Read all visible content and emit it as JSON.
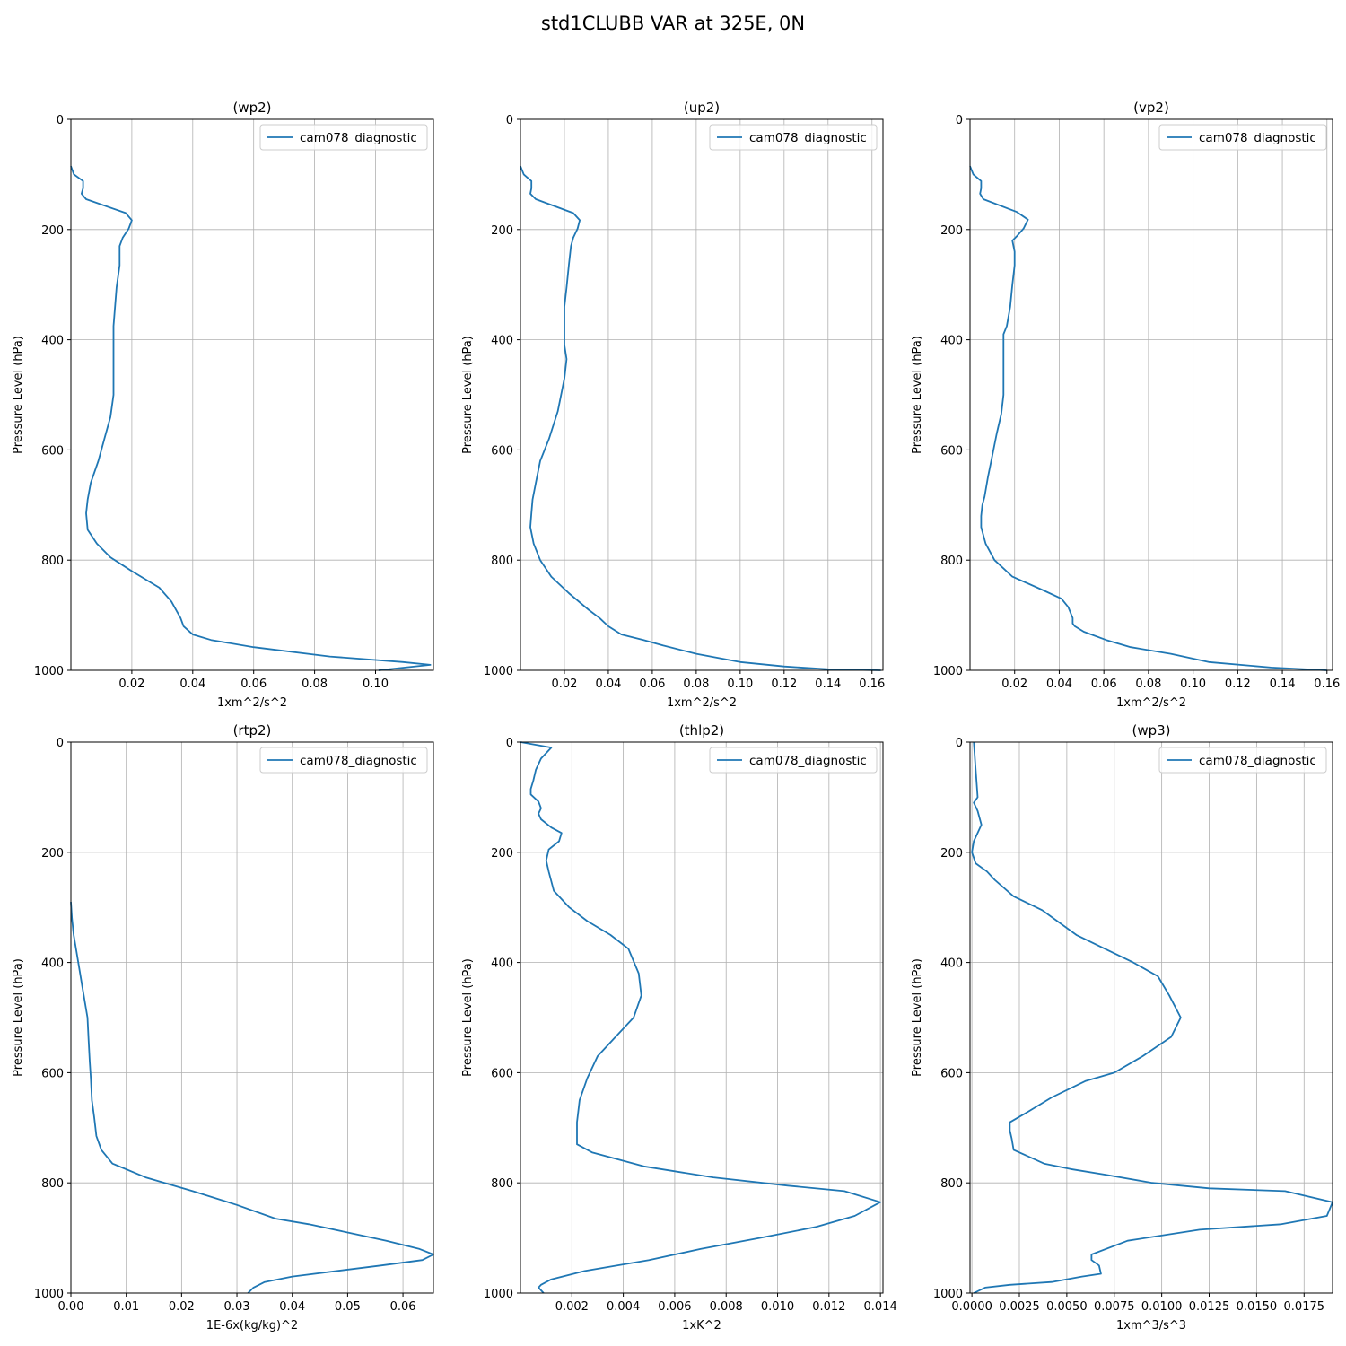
{
  "figure": {
    "title": "std1CLUBB VAR at 325E, 0N",
    "line_color": "#1f77b4",
    "grid_color": "#b0b0b0"
  },
  "chart_data": [
    {
      "type": "line",
      "title": "(wp2)",
      "xlabel": "1xm^2/s^2",
      "ylabel": "Pressure Level (hPa)",
      "xlim": [
        0.0,
        0.119
      ],
      "ylim": [
        1000,
        0
      ],
      "y_inverted": true,
      "xticks": [
        0.02,
        0.04,
        0.06,
        0.08,
        0.1
      ],
      "xtick_labels": [
        "0.02",
        "0.04",
        "0.06",
        "0.08",
        "0.10"
      ],
      "yticks": [
        0,
        200,
        400,
        600,
        800,
        1000
      ],
      "ytick_labels": [
        "0",
        "200",
        "400",
        "600",
        "800",
        "1000"
      ],
      "grid": true,
      "legend": "upper right",
      "series": [
        {
          "name": "cam078_diagnostic",
          "x": [
            0.0,
            0.001,
            0.004,
            0.004,
            0.0035,
            0.005,
            0.018,
            0.02,
            0.019,
            0.017,
            0.016,
            0.016,
            0.015,
            0.014,
            0.014,
            0.014,
            0.013,
            0.011,
            0.009,
            0.0065,
            0.0055,
            0.005,
            0.0055,
            0.0085,
            0.013,
            0.02,
            0.029,
            0.033,
            0.036,
            0.037,
            0.04,
            0.046,
            0.06,
            0.085,
            0.109,
            0.118,
            0.101
          ],
          "y": [
            85,
            100,
            112,
            125,
            135,
            145,
            170,
            183,
            198,
            215,
            230,
            265,
            305,
            375,
            440,
            500,
            540,
            580,
            620,
            660,
            690,
            715,
            745,
            770,
            795,
            820,
            850,
            875,
            905,
            920,
            935,
            945,
            958,
            975,
            985,
            990,
            1000
          ]
        }
      ]
    },
    {
      "type": "line",
      "title": "(up2)",
      "xlabel": "1xm^2/s^2",
      "ylabel": "Pressure Level (hPa)",
      "xlim": [
        0.0,
        0.165
      ],
      "ylim": [
        1000,
        0
      ],
      "y_inverted": true,
      "xticks": [
        0.02,
        0.04,
        0.06,
        0.08,
        0.1,
        0.12,
        0.14,
        0.16
      ],
      "xtick_labels": [
        "0.02",
        "0.04",
        "0.06",
        "0.08",
        "0.10",
        "0.12",
        "0.14",
        "0.16"
      ],
      "yticks": [
        0,
        200,
        400,
        600,
        800,
        1000
      ],
      "ytick_labels": [
        "0",
        "200",
        "400",
        "600",
        "800",
        "1000"
      ],
      "grid": true,
      "legend": "upper right",
      "series": [
        {
          "name": "cam078_diagnostic",
          "x": [
            0.0,
            0.0015,
            0.005,
            0.005,
            0.0045,
            0.007,
            0.024,
            0.027,
            0.026,
            0.024,
            0.023,
            0.022,
            0.021,
            0.02,
            0.02,
            0.02,
            0.021,
            0.02,
            0.017,
            0.013,
            0.009,
            0.007,
            0.0055,
            0.005,
            0.0045,
            0.006,
            0.009,
            0.014,
            0.022,
            0.031,
            0.036,
            0.04,
            0.046,
            0.056,
            0.065,
            0.08,
            0.1,
            0.12,
            0.14,
            0.164
          ],
          "y": [
            85,
            100,
            112,
            125,
            135,
            145,
            170,
            183,
            198,
            215,
            230,
            265,
            305,
            340,
            375,
            410,
            435,
            470,
            530,
            580,
            620,
            660,
            690,
            715,
            740,
            770,
            800,
            830,
            860,
            890,
            905,
            920,
            935,
            945,
            955,
            970,
            985,
            993,
            998,
            1000
          ]
        }
      ]
    },
    {
      "type": "line",
      "title": "(vp2)",
      "xlabel": "1xm^2/s^2",
      "ylabel": "Pressure Level (hPa)",
      "xlim": [
        0.0,
        0.1625
      ],
      "ylim": [
        1000,
        0
      ],
      "y_inverted": true,
      "xticks": [
        0.02,
        0.04,
        0.06,
        0.08,
        0.1,
        0.12,
        0.14,
        0.16
      ],
      "xtick_labels": [
        "0.02",
        "0.04",
        "0.06",
        "0.08",
        "0.10",
        "0.12",
        "0.14",
        "0.16"
      ],
      "yticks": [
        0,
        200,
        400,
        600,
        800,
        1000
      ],
      "ytick_labels": [
        "0",
        "200",
        "400",
        "600",
        "800",
        "1000"
      ],
      "grid": true,
      "legend": "upper right",
      "series": [
        {
          "name": "cam078_diagnostic",
          "x": [
            0.0,
            0.0015,
            0.005,
            0.005,
            0.0045,
            0.006,
            0.021,
            0.026,
            0.024,
            0.021,
            0.019,
            0.02,
            0.02,
            0.019,
            0.018,
            0.0165,
            0.015,
            0.015,
            0.015,
            0.014,
            0.012,
            0.01,
            0.008,
            0.0065,
            0.0055,
            0.005,
            0.005,
            0.007,
            0.011,
            0.019,
            0.033,
            0.041,
            0.044,
            0.046,
            0.046,
            0.047,
            0.051,
            0.061,
            0.072,
            0.09,
            0.107,
            0.135,
            0.16
          ],
          "y": [
            85,
            100,
            112,
            125,
            135,
            145,
            168,
            182,
            198,
            212,
            220,
            240,
            265,
            300,
            340,
            375,
            390,
            440,
            500,
            535,
            570,
            610,
            650,
            685,
            700,
            720,
            740,
            770,
            800,
            830,
            855,
            870,
            885,
            905,
            915,
            920,
            930,
            945,
            958,
            970,
            985,
            995,
            1000
          ]
        }
      ]
    },
    {
      "type": "line",
      "title": "(rtp2)",
      "xlabel": "1E-6x(kg/kg)^2",
      "ylabel": "Pressure Level (hPa)",
      "xlim": [
        0.0,
        0.0655
      ],
      "ylim": [
        1000,
        0
      ],
      "y_inverted": true,
      "xticks": [
        0.0,
        0.01,
        0.02,
        0.03,
        0.04,
        0.05,
        0.06
      ],
      "xtick_labels": [
        "0.00",
        "0.01",
        "0.02",
        "0.03",
        "0.04",
        "0.05",
        "0.06"
      ],
      "yticks": [
        0,
        200,
        400,
        600,
        800,
        1000
      ],
      "ytick_labels": [
        "0",
        "200",
        "400",
        "600",
        "800",
        "1000"
      ],
      "grid": true,
      "legend": "upper right",
      "series": [
        {
          "name": "cam078_diagnostic",
          "x": [
            0.0,
            0.0002,
            0.0005,
            0.001,
            0.002,
            0.003,
            0.0032,
            0.0034,
            0.0036,
            0.0038,
            0.0042,
            0.0046,
            0.0055,
            0.0075,
            0.0135,
            0.022,
            0.03,
            0.037,
            0.043,
            0.05,
            0.057,
            0.063,
            0.0655,
            0.0635,
            0.056,
            0.04,
            0.035,
            0.033,
            0.032
          ],
          "y": [
            290,
            320,
            350,
            380,
            440,
            500,
            540,
            580,
            610,
            650,
            680,
            715,
            740,
            765,
            790,
            815,
            840,
            865,
            875,
            890,
            905,
            920,
            930,
            940,
            950,
            970,
            980,
            990,
            1000
          ]
        }
      ]
    },
    {
      "type": "line",
      "title": "(thlp2)",
      "xlabel": "1xK^2",
      "ylabel": "Pressure Level (hPa)",
      "xlim": [
        0.0,
        0.0141
      ],
      "ylim": [
        1000,
        0
      ],
      "y_inverted": true,
      "xticks": [
        0.002,
        0.004,
        0.006,
        0.008,
        0.01,
        0.012,
        0.014
      ],
      "xtick_labels": [
        "0.002",
        "0.004",
        "0.006",
        "0.008",
        "0.010",
        "0.012",
        "0.014"
      ],
      "yticks": [
        0,
        200,
        400,
        600,
        800,
        1000
      ],
      "ytick_labels": [
        "0",
        "200",
        "400",
        "600",
        "800",
        "1000"
      ],
      "grid": true,
      "legend": "upper right",
      "series": [
        {
          "name": "cam078_diagnostic",
          "x": [
            0.0,
            0.0012,
            0.0008,
            0.0006,
            0.0005,
            0.0004,
            0.0004,
            0.0007,
            0.0008,
            0.0007,
            0.0008,
            0.0012,
            0.0016,
            0.0015,
            0.0011,
            0.001,
            0.0011,
            0.0013,
            0.0019,
            0.0026,
            0.0035,
            0.0042,
            0.0046,
            0.0047,
            0.0044,
            0.0037,
            0.003,
            0.0026,
            0.0023,
            0.0022,
            0.0022,
            0.0022,
            0.0028,
            0.0048,
            0.0075,
            0.0104,
            0.0126,
            0.014,
            0.013,
            0.0115,
            0.0093,
            0.007,
            0.005,
            0.0025,
            0.0012,
            0.0008,
            0.0007,
            0.0009
          ],
          "y": [
            0,
            10,
            30,
            50,
            70,
            85,
            95,
            108,
            120,
            130,
            140,
            155,
            165,
            180,
            195,
            215,
            235,
            270,
            300,
            325,
            350,
            375,
            420,
            460,
            500,
            535,
            570,
            610,
            650,
            690,
            715,
            730,
            745,
            770,
            790,
            805,
            815,
            835,
            860,
            880,
            900,
            920,
            940,
            960,
            975,
            985,
            990,
            1000
          ]
        }
      ]
    },
    {
      "type": "line",
      "title": "(wp3)",
      "xlabel": "1xm^3/s^3",
      "ylabel": "Pressure Level (hPa)",
      "xlim": [
        -0.0001,
        0.019
      ],
      "ylim": [
        1000,
        0
      ],
      "y_inverted": true,
      "xticks": [
        0.0,
        0.0025,
        0.005,
        0.0075,
        0.01,
        0.0125,
        0.015,
        0.0175
      ],
      "xtick_labels": [
        "0.0000",
        "0.0025",
        "0.0050",
        "0.0075",
        "0.0100",
        "0.0125",
        "0.0150",
        "0.0175"
      ],
      "yticks": [
        0,
        200,
        400,
        600,
        800,
        1000
      ],
      "ytick_labels": [
        "0",
        "200",
        "400",
        "600",
        "800",
        "1000"
      ],
      "grid": true,
      "legend": "upper right",
      "series": [
        {
          "name": "cam078_diagnostic",
          "x": [
            0.0001,
            0.0002,
            0.0003,
            0.0001,
            0.0003,
            0.0005,
            0.0001,
            0.0,
            0.0002,
            0.0008,
            0.0012,
            0.0022,
            0.0037,
            0.0055,
            0.007,
            0.0085,
            0.0098,
            0.0104,
            0.011,
            0.0105,
            0.009,
            0.0075,
            0.006,
            0.0042,
            0.003,
            0.002,
            0.002,
            0.0021,
            0.0022,
            0.0038,
            0.0052,
            0.007,
            0.0095,
            0.0125,
            0.0165,
            0.019,
            0.0187,
            0.0163,
            0.012,
            0.0082,
            0.0063,
            0.0063,
            0.0067,
            0.0068,
            0.0058,
            0.0042,
            0.002,
            0.0007,
            0.0001
          ],
          "y": [
            0,
            50,
            100,
            110,
            125,
            150,
            180,
            200,
            220,
            235,
            250,
            280,
            305,
            350,
            375,
            400,
            425,
            460,
            500,
            535,
            570,
            600,
            615,
            645,
            670,
            690,
            705,
            720,
            740,
            765,
            775,
            785,
            800,
            810,
            815,
            835,
            860,
            875,
            885,
            905,
            930,
            940,
            950,
            965,
            970,
            980,
            985,
            990,
            1000
          ]
        }
      ]
    }
  ]
}
